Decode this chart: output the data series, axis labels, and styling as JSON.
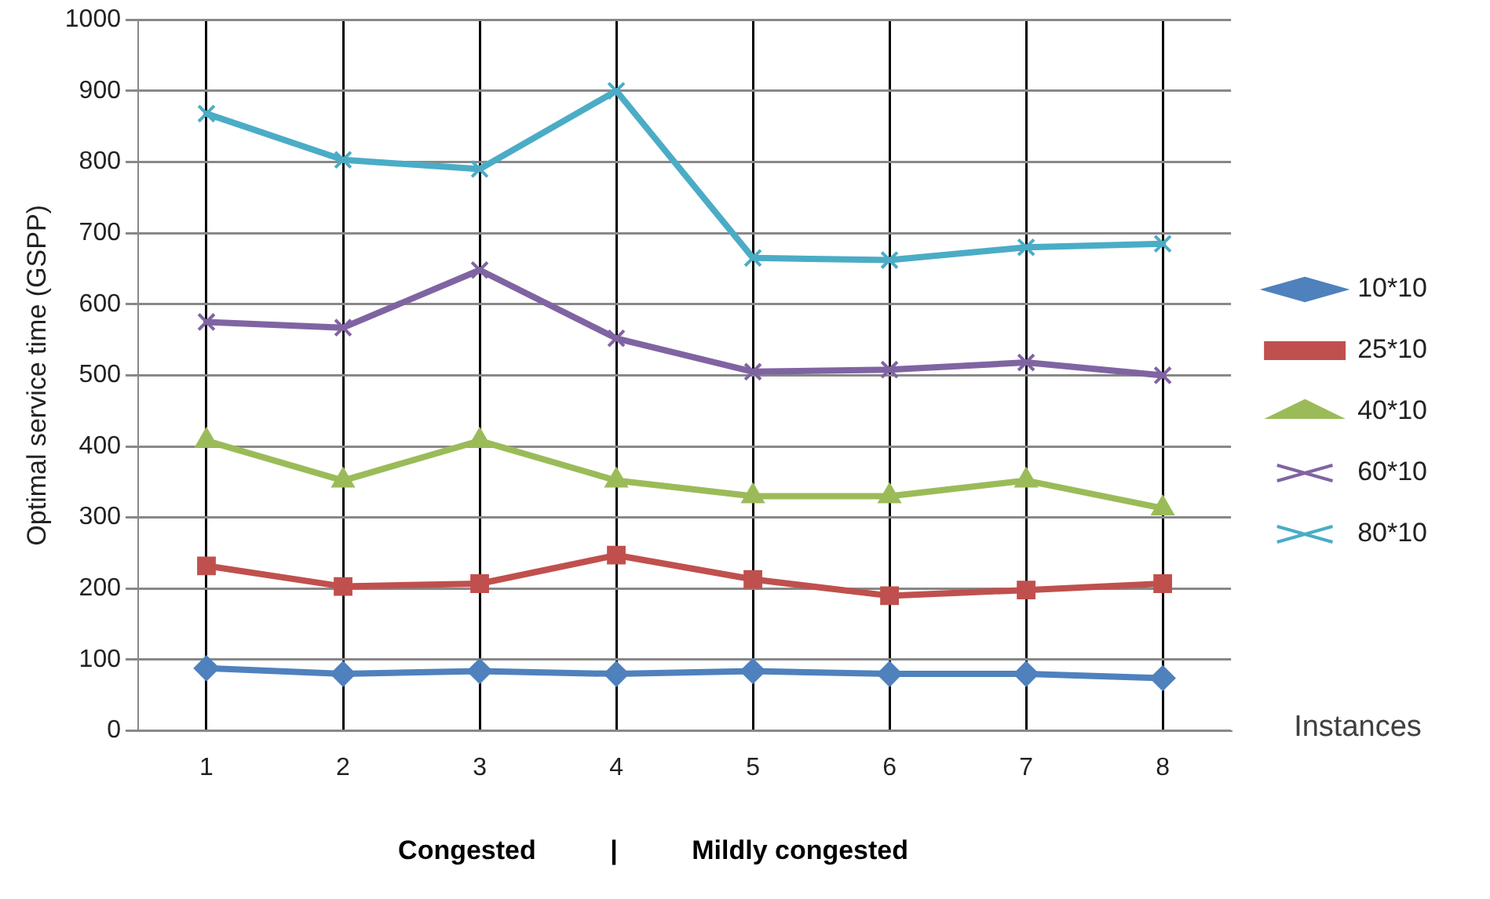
{
  "chart_data": {
    "type": "line",
    "ylabel": "Optimal service time (GSPP)",
    "xlabel": "Instances",
    "categories": [
      "1",
      "2",
      "3",
      "4",
      "5",
      "6",
      "7",
      "8"
    ],
    "series": [
      {
        "name": "10*10",
        "color": "#4f81bd",
        "marker": "diamond",
        "values": [
          88,
          80,
          84,
          80,
          84,
          80,
          80,
          74
        ]
      },
      {
        "name": "25*10",
        "color": "#c0504d",
        "marker": "square",
        "values": [
          232,
          203,
          207,
          247,
          213,
          190,
          198,
          207
        ]
      },
      {
        "name": "40*10",
        "color": "#9bbb59",
        "marker": "triangle",
        "values": [
          408,
          352,
          408,
          352,
          330,
          330,
          352,
          313
        ]
      },
      {
        "name": "60*10",
        "color": "#8064a2",
        "marker": "cross",
        "values": [
          575,
          567,
          648,
          552,
          505,
          508,
          518,
          500
        ]
      },
      {
        "name": "80*10",
        "color": "#4bacc6",
        "marker": "cross",
        "values": [
          868,
          803,
          790,
          900,
          665,
          662,
          680,
          685
        ]
      }
    ],
    "ylim": [
      0,
      1000
    ],
    "yticks": [
      0,
      100,
      200,
      300,
      400,
      500,
      600,
      700,
      800,
      900,
      1000
    ],
    "grid": true,
    "legend": "right",
    "line_style": "solid",
    "annotations": [
      "Congested          |          Mildly congested"
    ]
  }
}
